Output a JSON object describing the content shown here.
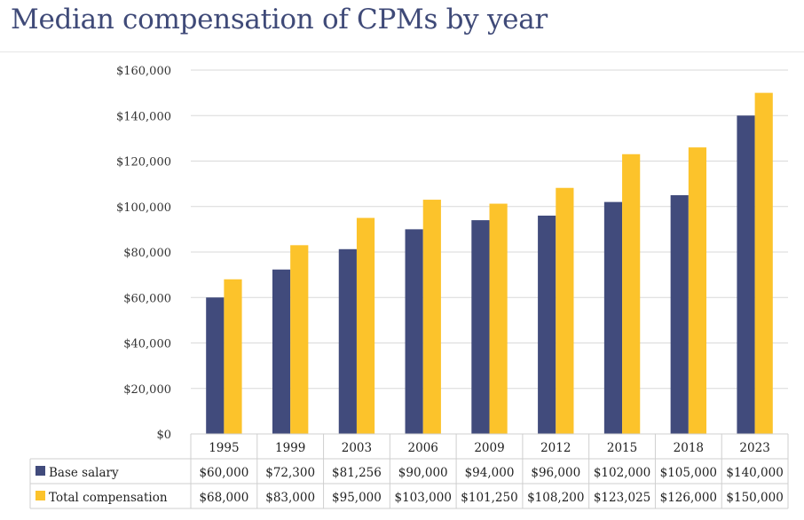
{
  "title": "Median compensation of CPMs by year",
  "chart_data": {
    "type": "bar",
    "categories": [
      "1995",
      "1999",
      "2003",
      "2006",
      "2009",
      "2012",
      "2015",
      "2018",
      "2023"
    ],
    "series": [
      {
        "name": "Base salary",
        "color": "#414b7c",
        "values": [
          60000,
          72300,
          81256,
          90000,
          94000,
          96000,
          102000,
          105000,
          140000
        ],
        "labels": [
          "$60,000",
          "$72,300",
          "$81,256",
          "$90,000",
          "$94,000",
          "$96,000",
          "$102,000",
          "$105,000",
          "$140,000"
        ]
      },
      {
        "name": "Total compensation",
        "color": "#fcc32b",
        "values": [
          68000,
          83000,
          95000,
          103000,
          101250,
          108200,
          123025,
          126000,
          150000
        ],
        "labels": [
          "$68,000",
          "$83,000",
          "$95,000",
          "$103,000",
          "$101,250",
          "$108,200",
          "$123,025",
          "$126,000",
          "$150,000"
        ]
      }
    ],
    "ylim": [
      0,
      160000
    ],
    "yticks": [
      "$0",
      "$20,000",
      "$40,000",
      "$60,000",
      "$80,000",
      "$100,000",
      "$120,000",
      "$140,000",
      "$160,000"
    ],
    "grid": true,
    "legend": "data-table"
  }
}
